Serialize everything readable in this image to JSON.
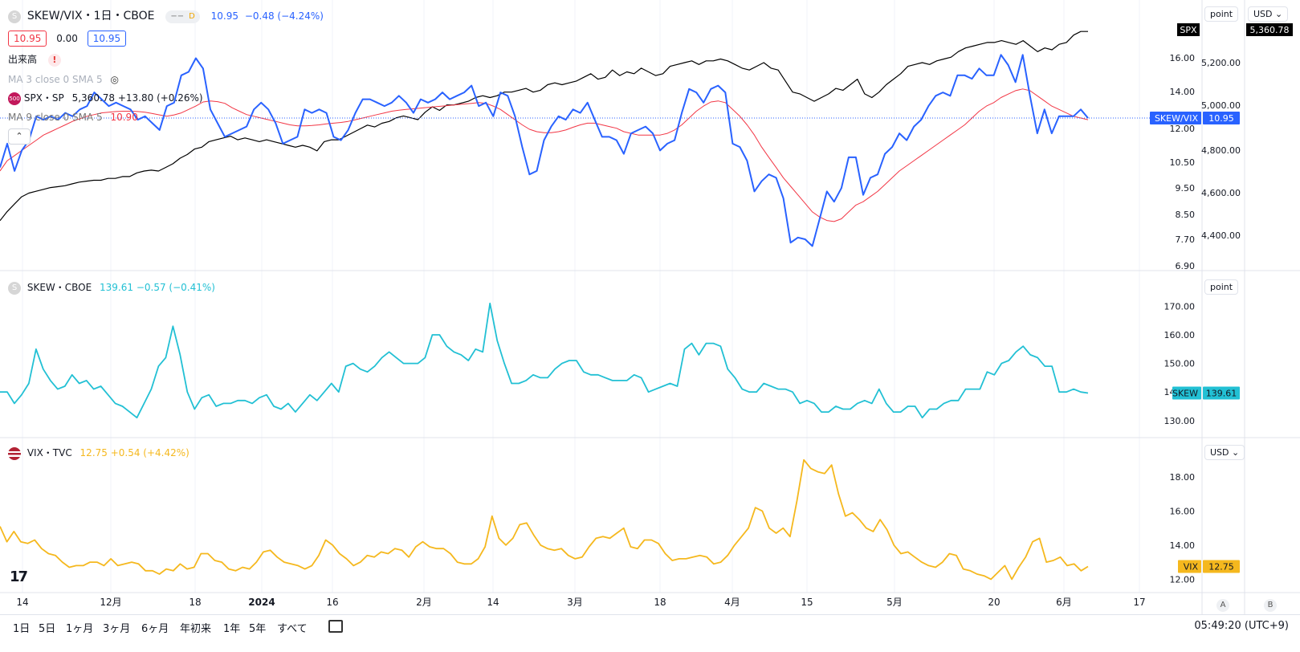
{
  "colors": {
    "ratio": "#2962ff",
    "ratio_ma": "#f23645",
    "spx": "#000000",
    "skew": "#22c0d4",
    "vix": "#f5b81e",
    "grid": "#f0f3fa",
    "axis_text": "#131722"
  },
  "header": {
    "symbol": "SKEW/VIX・1日・CBOE",
    "timeframe_badge": "D",
    "price": "10.95",
    "change": "−0.48 (−4.24%)",
    "ohlc_left": "10.95",
    "ohlc_mid": "0.00",
    "ohlc_right": "10.95",
    "volume_label": "出来高",
    "ma3_label": "MA 3 close 0 SMA 5",
    "spx_label": "SPX・SP",
    "spx_values": "5,360.78 +13.80 (+0.26%)",
    "ma9_label": "MA 9 close 0 SMA 5",
    "ma9_value": "10.90",
    "spx_badge": "500",
    "sym_icon": "S"
  },
  "scales": {
    "pane1_mode": "point",
    "pane1_currency": "USD",
    "pane2_mode": "point",
    "pane3_currency": "USD"
  },
  "skew_legend": {
    "label": "SKEW・CBOE",
    "values": "139.61 −0.57 (−0.41%)"
  },
  "vix_legend": {
    "label": "VIX・TVC",
    "values": "12.75 +0.54 (+4.42%)"
  },
  "tags": {
    "spx": "SPX",
    "spx_value": "5,360.78",
    "ratio": "SKEW/VIX",
    "ratio_value": "10.95",
    "skew": "SKEW",
    "skew_value": "139.61",
    "vix": "VIX",
    "vix_value": "12.75"
  },
  "footer": {
    "timeframes": [
      "1日",
      "5日",
      "1ヶ月",
      "3ヶ月",
      "6ヶ月",
      "年初来",
      "1年",
      "5年",
      "すべて"
    ],
    "clock": "05:49:20 (UTC+9)",
    "btn_a": "A",
    "btn_b": "B"
  },
  "chart_data": [
    {
      "type": "line",
      "pane": "SKEW/VIX",
      "series": [
        {
          "name": "SKEW/VIX",
          "values": [
            9.5,
            10.2,
            9.4,
            10.0,
            10.3,
            11.0,
            10.9,
            11.0,
            10.9,
            11.1,
            11.0,
            11.2,
            11.3,
            11.7,
            11.5,
            11.3,
            11.4,
            11.3,
            11.2,
            10.9,
            11.0,
            10.8,
            10.6,
            11.3,
            11.4,
            12.2,
            12.3,
            12.7,
            12.4,
            11.2,
            10.8,
            10.4,
            10.5,
            10.6,
            10.7,
            11.2,
            11.4,
            11.2,
            10.8,
            10.2,
            10.3,
            10.4,
            11.2,
            11.1,
            11.2,
            11.1,
            10.4,
            10.3,
            10.6,
            11.1,
            11.5,
            11.5,
            11.4,
            11.3,
            11.4,
            11.6,
            11.4,
            11.1,
            11.5,
            11.4,
            11.5,
            11.7,
            11.5,
            11.6,
            11.7,
            11.9,
            11.3,
            11.4,
            11.0,
            11.7,
            11.6,
            11.0,
            10.1,
            9.3,
            9.4,
            10.3,
            10.7,
            11.0,
            10.9,
            11.2,
            11.1,
            11.4,
            10.9,
            10.4,
            10.4,
            10.3,
            9.9,
            10.5,
            10.6,
            10.7,
            10.5,
            10.0,
            10.2,
            10.3,
            11.1,
            11.8,
            11.7,
            11.4,
            11.8,
            11.9,
            11.7,
            10.2,
            10.1,
            9.7,
            8.8,
            9.1,
            9.3,
            9.2,
            8.6,
            7.3,
            7.45,
            7.4,
            7.2,
            8.0,
            8.8,
            8.5,
            8.9,
            9.8,
            9.8,
            8.7,
            9.2,
            9.3,
            9.9,
            10.1,
            10.5,
            10.3,
            10.7,
            10.9,
            11.3,
            11.6,
            11.7,
            11.6,
            12.2,
            12.2,
            12.1,
            12.4,
            12.2,
            12.2,
            12.8,
            12.5,
            12.0,
            12.8,
            11.6,
            10.5,
            11.2,
            10.5,
            11.0,
            11.0,
            11.0,
            11.2,
            10.95
          ],
          "color": "#2962ff"
        },
        {
          "name": "MA",
          "values": [
            9.4,
            9.7,
            9.85,
            10.0,
            10.15,
            10.3,
            10.45,
            10.55,
            10.65,
            10.75,
            10.85,
            10.93,
            11.0,
            11.05,
            11.1,
            11.12,
            11.14,
            11.15,
            11.15,
            11.14,
            11.12,
            11.08,
            11.04,
            11.0,
            11.04,
            11.1,
            11.2,
            11.3,
            11.42,
            11.45,
            11.43,
            11.38,
            11.25,
            11.15,
            11.05,
            11.0,
            10.95,
            10.9,
            10.85,
            10.8,
            10.75,
            10.72,
            10.72,
            10.73,
            10.75,
            10.78,
            10.8,
            10.82,
            10.85,
            10.9,
            10.95,
            11.0,
            11.05,
            11.1,
            11.15,
            11.18,
            11.2,
            11.22,
            11.24,
            11.26,
            11.28,
            11.3,
            11.32,
            11.34,
            11.36,
            11.38,
            11.4,
            11.38,
            11.3,
            11.2,
            11.05,
            10.9,
            10.75,
            10.62,
            10.55,
            10.52,
            10.52,
            10.55,
            10.6,
            10.68,
            10.75,
            10.8,
            10.8,
            10.75,
            10.7,
            10.65,
            10.55,
            10.5,
            10.45,
            10.45,
            10.45,
            10.45,
            10.5,
            10.6,
            10.75,
            10.95,
            11.15,
            11.3,
            11.42,
            11.45,
            11.4,
            11.2,
            11.0,
            10.75,
            10.45,
            10.1,
            9.8,
            9.5,
            9.2,
            8.95,
            8.7,
            8.45,
            8.2,
            8.05,
            7.95,
            7.92,
            8.0,
            8.2,
            8.4,
            8.5,
            8.65,
            8.8,
            9.0,
            9.2,
            9.4,
            9.55,
            9.7,
            9.85,
            10.0,
            10.15,
            10.3,
            10.45,
            10.6,
            10.75,
            10.95,
            11.15,
            11.3,
            11.4,
            11.55,
            11.65,
            11.75,
            11.8,
            11.75,
            11.6,
            11.45,
            11.3,
            11.2,
            11.1,
            11.0,
            10.95,
            10.9
          ],
          "color": "#f23645"
        },
        {
          "name": "SPX",
          "values": [
            4330,
            4380,
            4420,
            4460,
            4480,
            4490,
            4500,
            4510,
            4515,
            4520,
            4530,
            4540,
            4545,
            4550,
            4550,
            4560,
            4560,
            4570,
            4570,
            4590,
            4600,
            4605,
            4600,
            4620,
            4640,
            4670,
            4690,
            4720,
            4730,
            4760,
            4770,
            4780,
            4790,
            4770,
            4780,
            4770,
            4760,
            4770,
            4760,
            4750,
            4740,
            4730,
            4740,
            4730,
            4710,
            4760,
            4770,
            4770,
            4790,
            4810,
            4830,
            4850,
            4840,
            4860,
            4870,
            4890,
            4900,
            4890,
            4880,
            4920,
            4950,
            4930,
            4960,
            4960,
            4970,
            4980,
            5000,
            5010,
            5000,
            5010,
            5030,
            5030,
            5040,
            5050,
            5030,
            5040,
            5070,
            5080,
            5070,
            5080,
            5090,
            5110,
            5130,
            5100,
            5110,
            5150,
            5120,
            5140,
            5130,
            5160,
            5140,
            5120,
            5130,
            5170,
            5180,
            5190,
            5200,
            5180,
            5200,
            5200,
            5210,
            5200,
            5180,
            5160,
            5150,
            5170,
            5190,
            5160,
            5150,
            5090,
            5030,
            5020,
            5000,
            4980,
            5000,
            5020,
            5050,
            5040,
            5070,
            5100,
            5020,
            5000,
            5030,
            5070,
            5100,
            5130,
            5170,
            5180,
            5190,
            5180,
            5200,
            5210,
            5220,
            5250,
            5270,
            5280,
            5290,
            5300,
            5300,
            5310,
            5300,
            5290,
            5310,
            5280,
            5250,
            5270,
            5260,
            5290,
            5300,
            5340,
            5360,
            5360
          ],
          "color": "#000000"
        }
      ],
      "ylim_left": [
        6.6,
        13.7
      ],
      "ylim_right": [
        4080,
        5400
      ],
      "yticks_right": [
        "16.00",
        "14.00",
        "12.00",
        "10.50",
        "9.50",
        "8.50",
        "7.70",
        "6.90"
      ],
      "yticks_spx": [
        "5,200.00",
        "5,000.00",
        "4,800.00",
        "4,600.00",
        "4,400.00"
      ]
    },
    {
      "type": "line",
      "pane": "SKEW",
      "series": [
        {
          "name": "SKEW",
          "values": [
            140,
            140,
            136,
            139,
            143,
            155,
            148,
            144,
            141,
            142,
            146,
            143,
            144,
            141,
            142,
            139,
            136,
            135,
            133,
            131,
            136,
            141,
            149,
            152,
            163,
            153,
            140,
            134,
            138,
            139,
            135,
            136,
            136,
            137,
            137,
            136,
            138,
            139,
            135,
            134,
            136,
            133,
            136,
            139,
            137,
            140,
            143,
            140,
            149,
            150,
            148,
            147,
            149,
            152,
            154,
            152,
            150,
            150,
            150,
            152,
            160,
            160,
            156,
            154,
            153,
            151,
            155,
            154,
            171,
            158,
            150,
            143,
            143,
            144,
            146,
            145,
            145,
            148,
            150,
            151,
            151,
            147,
            146,
            146,
            145,
            144,
            144,
            144,
            146,
            145,
            140,
            141,
            142,
            143,
            142,
            155,
            157,
            153,
            157,
            157,
            156,
            148,
            145,
            141,
            140,
            140,
            143,
            142,
            141,
            141,
            140,
            136,
            137,
            136,
            133,
            133,
            135,
            134,
            134,
            136,
            137,
            136,
            141,
            136,
            133,
            133,
            135,
            135,
            131,
            134,
            134,
            136,
            137,
            137,
            141,
            141,
            141,
            147,
            146,
            150,
            151,
            154,
            156,
            153,
            152,
            149,
            149,
            140,
            140,
            141,
            140,
            139.61
          ],
          "color": "#22c0d4"
        }
      ],
      "ylim": [
        126,
        176
      ],
      "yticks": [
        "170.00",
        "160.00",
        "150.00",
        "140.00",
        "130.00"
      ]
    },
    {
      "type": "line",
      "pane": "VIX",
      "series": [
        {
          "name": "VIX",
          "values": [
            15.1,
            14.2,
            14.8,
            14.2,
            14.1,
            14.3,
            13.8,
            13.5,
            13.4,
            13.0,
            12.7,
            12.8,
            12.8,
            13.0,
            13.0,
            12.8,
            13.2,
            12.8,
            12.9,
            13.0,
            12.9,
            12.5,
            12.5,
            12.3,
            12.6,
            12.5,
            12.9,
            12.6,
            12.7,
            13.5,
            13.5,
            13.1,
            13.0,
            12.6,
            12.5,
            12.7,
            12.6,
            13.0,
            13.6,
            13.7,
            13.3,
            13.0,
            12.9,
            12.8,
            12.6,
            12.8,
            13.4,
            14.3,
            14.0,
            13.5,
            13.2,
            12.8,
            13.0,
            13.4,
            13.3,
            13.6,
            13.5,
            13.8,
            13.7,
            13.3,
            13.9,
            14.2,
            13.9,
            13.8,
            13.8,
            13.5,
            13.0,
            12.9,
            12.9,
            13.2,
            13.9,
            15.7,
            14.4,
            14.0,
            14.4,
            15.2,
            15.3,
            14.6,
            14.0,
            13.8,
            13.7,
            13.8,
            13.4,
            13.2,
            13.3,
            13.9,
            14.4,
            14.5,
            14.4,
            14.7,
            15.0,
            13.9,
            13.8,
            14.3,
            14.3,
            14.1,
            13.5,
            13.1,
            13.2,
            13.2,
            13.3,
            13.4,
            13.3,
            12.9,
            13.0,
            13.4,
            14.0,
            14.5,
            15.0,
            16.2,
            16.0,
            15.0,
            14.7,
            15.0,
            14.5,
            16.6,
            19.0,
            18.5,
            18.3,
            18.2,
            18.7,
            17.0,
            15.7,
            15.9,
            15.5,
            15.0,
            14.8,
            15.5,
            14.9,
            14.0,
            13.5,
            13.6,
            13.3,
            13.0,
            12.8,
            12.7,
            13.0,
            13.5,
            13.4,
            12.6,
            12.5,
            12.3,
            12.2,
            12.0,
            12.4,
            12.8,
            12.0,
            12.7,
            13.3,
            14.2,
            14.4,
            13.0,
            13.1,
            13.3,
            12.8,
            12.9,
            12.5,
            12.75
          ],
          "color": "#f5b81e"
        }
      ],
      "ylim": [
        11.5,
        19.6
      ],
      "yticks": [
        "18.00",
        "16.00",
        "14.00",
        "12.00"
      ]
    }
  ],
  "xaxis_labels": [
    "14",
    "12月",
    "18",
    "2024",
    "16",
    "2月",
    "14",
    "3月",
    "18",
    "4月",
    "15",
    "5月",
    "20",
    "6月",
    "17"
  ]
}
